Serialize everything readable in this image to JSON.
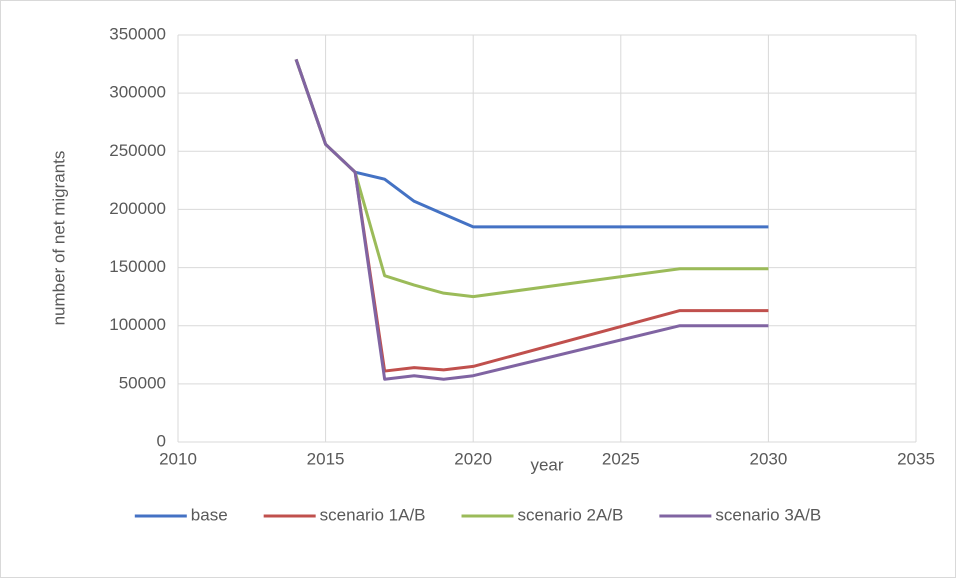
{
  "chart_data": {
    "type": "line",
    "x_label": "year",
    "y_label": "number of net migrants",
    "x": [
      2014,
      2015,
      2016,
      2017,
      2018,
      2019,
      2020,
      2027,
      2030
    ],
    "series": [
      {
        "name": "base",
        "color": "#4472c4",
        "values": [
          329000,
          256000,
          232000,
          226000,
          207000,
          196000,
          185000,
          185000,
          185000
        ]
      },
      {
        "name": "scenario 1A/B",
        "color": "#c0504d",
        "values": [
          329000,
          256000,
          232000,
          61000,
          64000,
          62000,
          65000,
          113000,
          113000
        ]
      },
      {
        "name": "scenario 2A/B",
        "color": "#9bbb59",
        "values": [
          329000,
          256000,
          232000,
          143000,
          135000,
          128000,
          125000,
          149000,
          149000
        ]
      },
      {
        "name": "scenario 3A/B",
        "color": "#8064a2",
        "values": [
          329000,
          256000,
          232000,
          54000,
          57000,
          54000,
          57000,
          100000,
          100000
        ]
      }
    ],
    "xlim": [
      2010,
      2035
    ],
    "xticks": [
      2010,
      2015,
      2020,
      2025,
      2030,
      2035
    ],
    "ylim": [
      0,
      350000
    ],
    "yticks": [
      0,
      50000,
      100000,
      150000,
      200000,
      250000,
      300000,
      350000
    ],
    "grid": true,
    "legend": "bottom"
  }
}
